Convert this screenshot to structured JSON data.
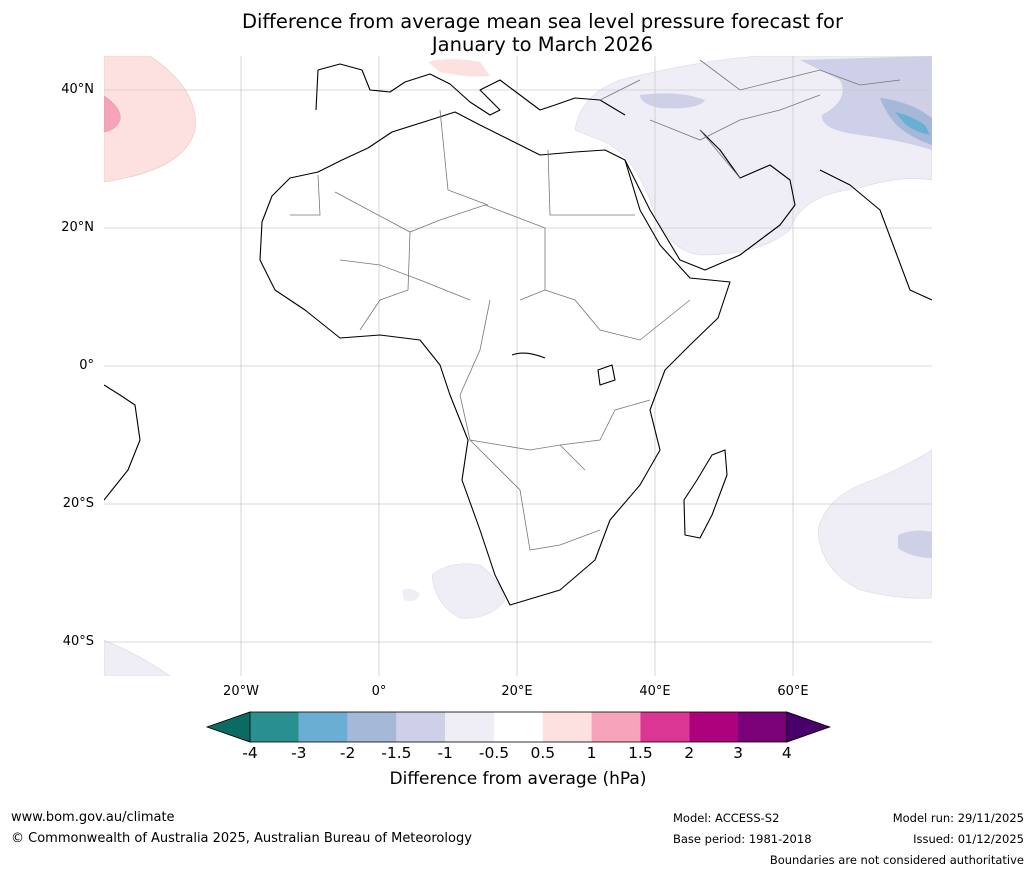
{
  "title_line1": "Difference from average mean sea level pressure forecast for",
  "title_line2": "January to March 2026",
  "latitude_labels": [
    "40°N",
    "20°N",
    "0°",
    "20°S",
    "40°S"
  ],
  "longitude_labels": [
    "20°W",
    "0°",
    "20°E",
    "40°E",
    "60°E"
  ],
  "colorbar": {
    "ticks": [
      "-4",
      "-3",
      "-2",
      "-1.5",
      "-1",
      "-0.5",
      "0.5",
      "1",
      "1.5",
      "2",
      "3",
      "4"
    ],
    "colors": [
      "#2a8f8f",
      "#6aaed3",
      "#a6b8d8",
      "#cdd0e6",
      "#efedf5",
      "#ffffff",
      "#fde0e0",
      "#f7a3bb",
      "#dc3694",
      "#ae017e",
      "#7a0177"
    ],
    "under_color": "#0b6b62",
    "over_color": "#49006a",
    "label": "Difference from average (hPa)"
  },
  "footer": {
    "website": "www.bom.gov.au/climate",
    "copyright": "© Commonwealth of Australia 2025, Australian Bureau of Meteorology",
    "model": "Model: ACCESS-S2",
    "base_period": "Base period: 1981-2018",
    "model_run": "Model run: 29/11/2025",
    "issued": "Issued: 01/12/2025",
    "disclaimer": "Boundaries are not considered authoritative"
  }
}
